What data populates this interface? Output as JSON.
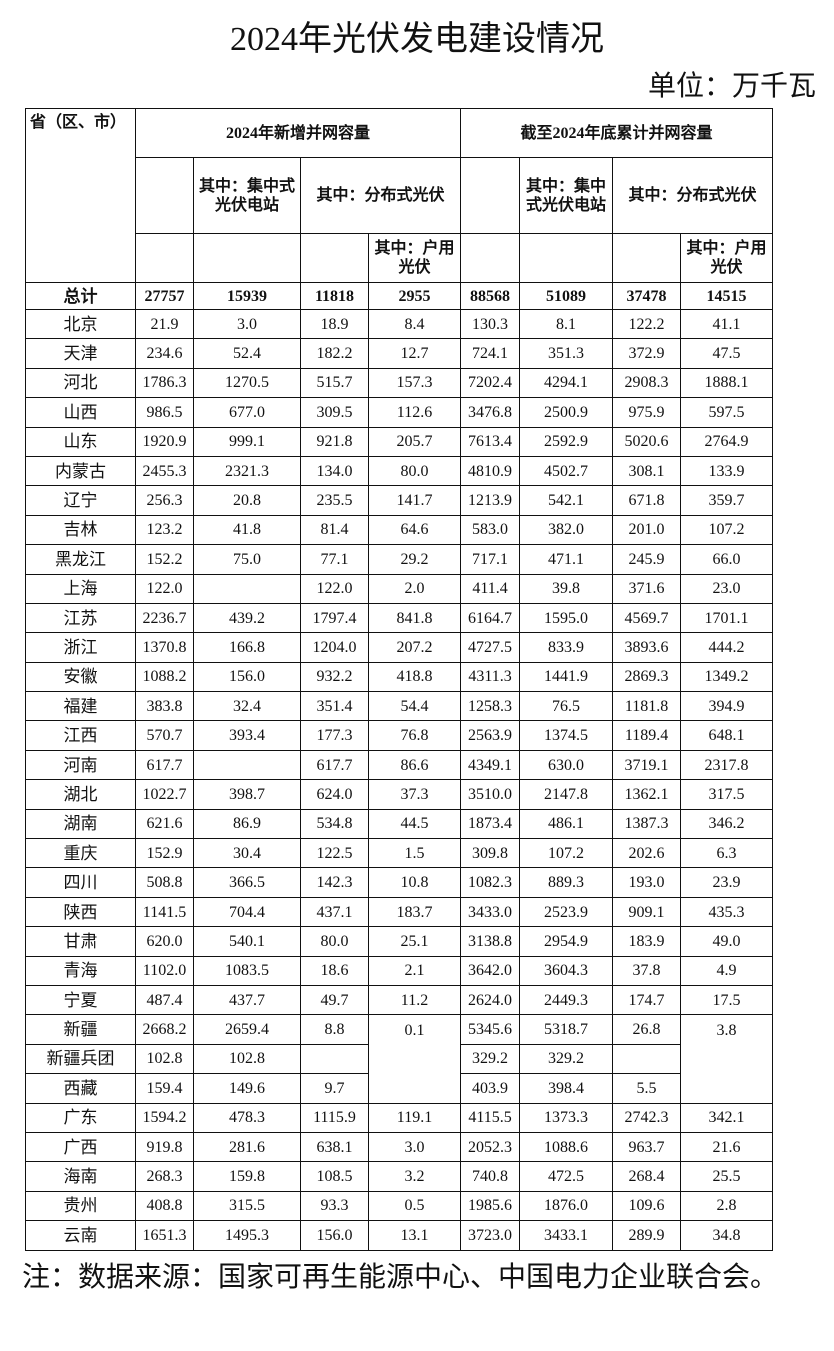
{
  "header": {
    "title": "2024年光伏发电建设情况",
    "unit": "单位：万千瓦"
  },
  "table": {
    "columns": {
      "region": "省（区、市）",
      "new_group": "2024年新增并网容量",
      "cum_group": "截至2024年底累计并网容量",
      "new_central": "其中：集中式光伏电站",
      "new_distributed": "其中：分布式光伏",
      "new_household": "其中：户用光伏",
      "cum_central": "其中：集中式光伏电站",
      "cum_distributed": "其中：分布式光伏",
      "cum_household": "其中：户用光伏"
    },
    "rows": [
      [
        "总计",
        "27757",
        "15939",
        "11818",
        "2955",
        "88568",
        "51089",
        "37478",
        "14515"
      ],
      [
        "北京",
        "21.9",
        "3.0",
        "18.9",
        "8.4",
        "130.3",
        "8.1",
        "122.2",
        "41.1"
      ],
      [
        "天津",
        "234.6",
        "52.4",
        "182.2",
        "12.7",
        "724.1",
        "351.3",
        "372.9",
        "47.5"
      ],
      [
        "河北",
        "1786.3",
        "1270.5",
        "515.7",
        "157.3",
        "7202.4",
        "4294.1",
        "2908.3",
        "1888.1"
      ],
      [
        "山西",
        "986.5",
        "677.0",
        "309.5",
        "112.6",
        "3476.8",
        "2500.9",
        "975.9",
        "597.5"
      ],
      [
        "山东",
        "1920.9",
        "999.1",
        "921.8",
        "205.7",
        "7613.4",
        "2592.9",
        "5020.6",
        "2764.9"
      ],
      [
        "内蒙古",
        "2455.3",
        "2321.3",
        "134.0",
        "80.0",
        "4810.9",
        "4502.7",
        "308.1",
        "133.9"
      ],
      [
        "辽宁",
        "256.3",
        "20.8",
        "235.5",
        "141.7",
        "1213.9",
        "542.1",
        "671.8",
        "359.7"
      ],
      [
        "吉林",
        "123.2",
        "41.8",
        "81.4",
        "64.6",
        "583.0",
        "382.0",
        "201.0",
        "107.2"
      ],
      [
        "黑龙江",
        "152.2",
        "75.0",
        "77.1",
        "29.2",
        "717.1",
        "471.1",
        "245.9",
        "66.0"
      ],
      [
        "上海",
        "122.0",
        null,
        "122.0",
        "2.0",
        "411.4",
        "39.8",
        "371.6",
        "23.0"
      ],
      [
        "江苏",
        "2236.7",
        "439.2",
        "1797.4",
        "841.8",
        "6164.7",
        "1595.0",
        "4569.7",
        "1701.1"
      ],
      [
        "浙江",
        "1370.8",
        "166.8",
        "1204.0",
        "207.2",
        "4727.5",
        "833.9",
        "3893.6",
        "444.2"
      ],
      [
        "安徽",
        "1088.2",
        "156.0",
        "932.2",
        "418.8",
        "4311.3",
        "1441.9",
        "2869.3",
        "1349.2"
      ],
      [
        "福建",
        "383.8",
        "32.4",
        "351.4",
        "54.4",
        "1258.3",
        "76.5",
        "1181.8",
        "394.9"
      ],
      [
        "江西",
        "570.7",
        "393.4",
        "177.3",
        "76.8",
        "2563.9",
        "1374.5",
        "1189.4",
        "648.1"
      ],
      [
        "河南",
        "617.7",
        null,
        "617.7",
        "86.6",
        "4349.1",
        "630.0",
        "3719.1",
        "2317.8"
      ],
      [
        "湖北",
        "1022.7",
        "398.7",
        "624.0",
        "37.3",
        "3510.0",
        "2147.8",
        "1362.1",
        "317.5"
      ],
      [
        "湖南",
        "621.6",
        "86.9",
        "534.8",
        "44.5",
        "1873.4",
        "486.1",
        "1387.3",
        "346.2"
      ],
      [
        "重庆",
        "152.9",
        "30.4",
        "122.5",
        "1.5",
        "309.8",
        "107.2",
        "202.6",
        "6.3"
      ],
      [
        "四川",
        "508.8",
        "366.5",
        "142.3",
        "10.8",
        "1082.3",
        "889.3",
        "193.0",
        "23.9"
      ],
      [
        "陕西",
        "1141.5",
        "704.4",
        "437.1",
        "183.7",
        "3433.0",
        "2523.9",
        "909.1",
        "435.3"
      ],
      [
        "甘肃",
        "620.0",
        "540.1",
        "80.0",
        "25.1",
        "3138.8",
        "2954.9",
        "183.9",
        "49.0"
      ],
      [
        "青海",
        "1102.0",
        "1083.5",
        "18.6",
        "2.1",
        "3642.0",
        "3604.3",
        "37.8",
        "4.9"
      ],
      [
        "宁夏",
        "487.4",
        "437.7",
        "49.7",
        "11.2",
        "2624.0",
        "2449.3",
        "174.7",
        "17.5"
      ],
      [
        "新疆",
        "2668.2",
        "2659.4",
        "8.8",
        "0.1",
        "5345.6",
        "5318.7",
        "26.8",
        "3.8"
      ],
      [
        "新疆兵团",
        "102.8",
        "102.8",
        null,
        null,
        "329.2",
        "329.2",
        null,
        null
      ],
      [
        "西藏",
        "159.4",
        "149.6",
        "9.7",
        null,
        "403.9",
        "398.4",
        "5.5",
        null
      ],
      [
        "广东",
        "1594.2",
        "478.3",
        "1115.9",
        "119.1",
        "4115.5",
        "1373.3",
        "2742.3",
        "342.1"
      ],
      [
        "广西",
        "919.8",
        "281.6",
        "638.1",
        "3.0",
        "2052.3",
        "1088.6",
        "963.7",
        "21.6"
      ],
      [
        "海南",
        "268.3",
        "159.8",
        "108.5",
        "3.2",
        "740.8",
        "472.5",
        "268.4",
        "25.5"
      ],
      [
        "贵州",
        "408.8",
        "315.5",
        "93.3",
        "0.5",
        "1985.6",
        "1876.0",
        "109.6",
        "2.8"
      ],
      [
        "云南",
        "1651.3",
        "1495.3",
        "156.0",
        "13.1",
        "3723.0",
        "3433.1",
        "289.9",
        "34.8"
      ]
    ]
  },
  "footer": {
    "note": "注：数据来源：国家可再生能源中心、中国电力企业联合会。"
  }
}
